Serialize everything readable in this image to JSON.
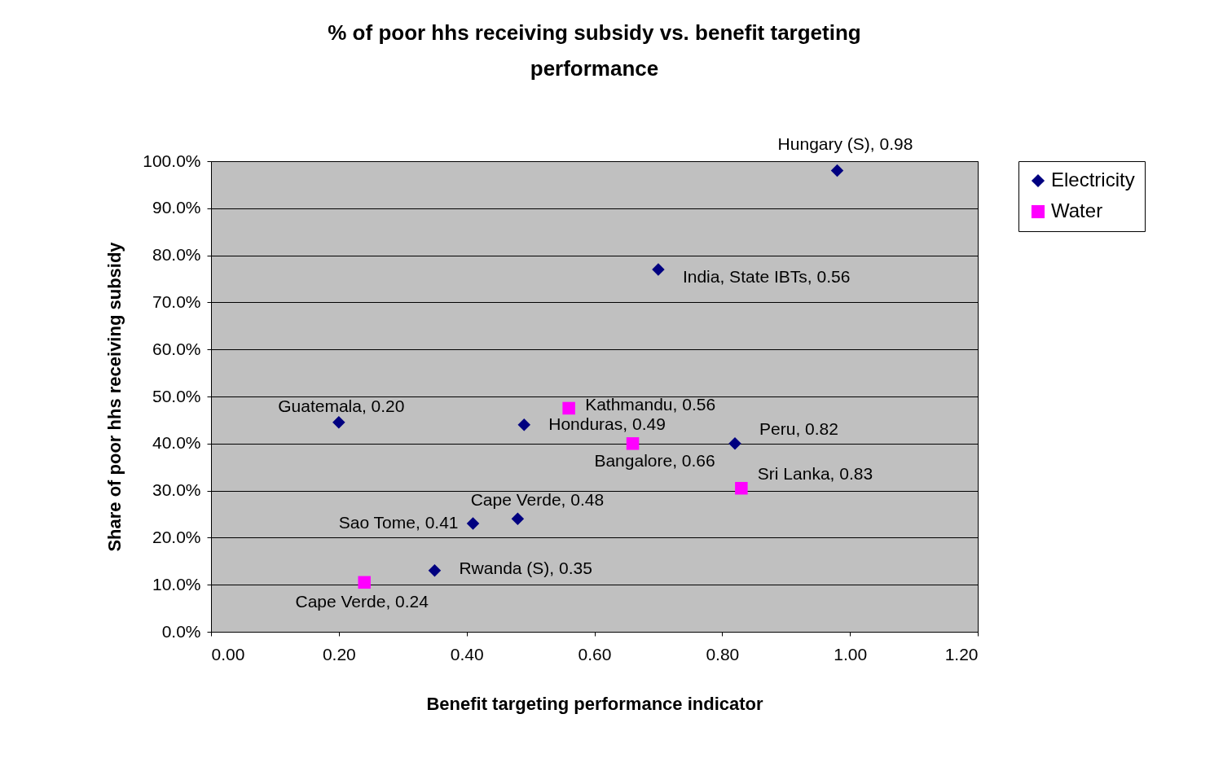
{
  "chart_data": {
    "type": "scatter",
    "title": "% of poor hhs receiving subsidy vs. benefit targeting performance",
    "xlabel": "Benefit targeting performance indicator",
    "ylabel": "Share of poor hhs receiving subsidy",
    "xlim": [
      0,
      1.2
    ],
    "xticks": [
      {
        "value": 0,
        "label": "0.00"
      },
      {
        "value": 0.2,
        "label": "0.20"
      },
      {
        "value": 0.4,
        "label": "0.40"
      },
      {
        "value": 0.6,
        "label": "0.60"
      },
      {
        "value": 0.8,
        "label": "0.80"
      },
      {
        "value": 1,
        "label": "1.00"
      },
      {
        "value": 1.2,
        "label": "1.20"
      }
    ],
    "ylim": [
      0,
      100
    ],
    "yticks": [
      {
        "value": 0,
        "label": "0.0%"
      },
      {
        "value": 10,
        "label": "10.0%"
      },
      {
        "value": 20,
        "label": "20.0%"
      },
      {
        "value": 30,
        "label": "30.0%"
      },
      {
        "value": 40,
        "label": "40.0%"
      },
      {
        "value": 50,
        "label": "50.0%"
      },
      {
        "value": 60,
        "label": "60.0%"
      },
      {
        "value": 70,
        "label": "70.0%"
      },
      {
        "value": 80,
        "label": "80.0%"
      },
      {
        "value": 90,
        "label": "90.0%"
      },
      {
        "value": 100,
        "label": "100.0%"
      }
    ],
    "grid": "y",
    "legend": "right",
    "annotations": [
      {
        "text": "Hungary (S), 0.98",
        "x": 0.98,
        "y": 98
      },
      {
        "text": "India, State IBTs, 0.56",
        "x": 0.7,
        "y": 77
      },
      {
        "text": "Guatemala, 0.20",
        "x": 0.2,
        "y": 44.5
      },
      {
        "text": "Honduras, 0.49",
        "x": 0.49,
        "y": 44
      },
      {
        "text": "Peru, 0.82",
        "x": 0.82,
        "y": 40
      },
      {
        "text": "Cape Verde, 0.48",
        "x": 0.48,
        "y": 24
      },
      {
        "text": "Sao Tome, 0.41",
        "x": 0.41,
        "y": 23
      },
      {
        "text": "Rwanda (S), 0.35",
        "x": 0.35,
        "y": 13
      },
      {
        "text": "Kathmandu, 0.56",
        "x": 0.56,
        "y": 47.5
      },
      {
        "text": "Bangalore, 0.66",
        "x": 0.66,
        "y": 40
      },
      {
        "text": "Sri Lanka, 0.83",
        "x": 0.83,
        "y": 30.5
      },
      {
        "text": "Cape Verde, 0.24",
        "x": 0.24,
        "y": 10.5
      }
    ],
    "series": [
      {
        "name": "Electricity",
        "color": "#000080",
        "marker": "diamond",
        "x": [
          0.98,
          0.7,
          0.2,
          0.49,
          0.82,
          0.48,
          0.41,
          0.35
        ],
        "values": [
          98,
          77,
          44.5,
          44,
          40,
          24,
          23,
          13
        ]
      },
      {
        "name": "Water",
        "color": "#ff00ff",
        "marker": "square",
        "x": [
          0.56,
          0.66,
          0.83,
          0.24
        ],
        "values": [
          47.5,
          40,
          30.5,
          10.5
        ]
      }
    ]
  }
}
